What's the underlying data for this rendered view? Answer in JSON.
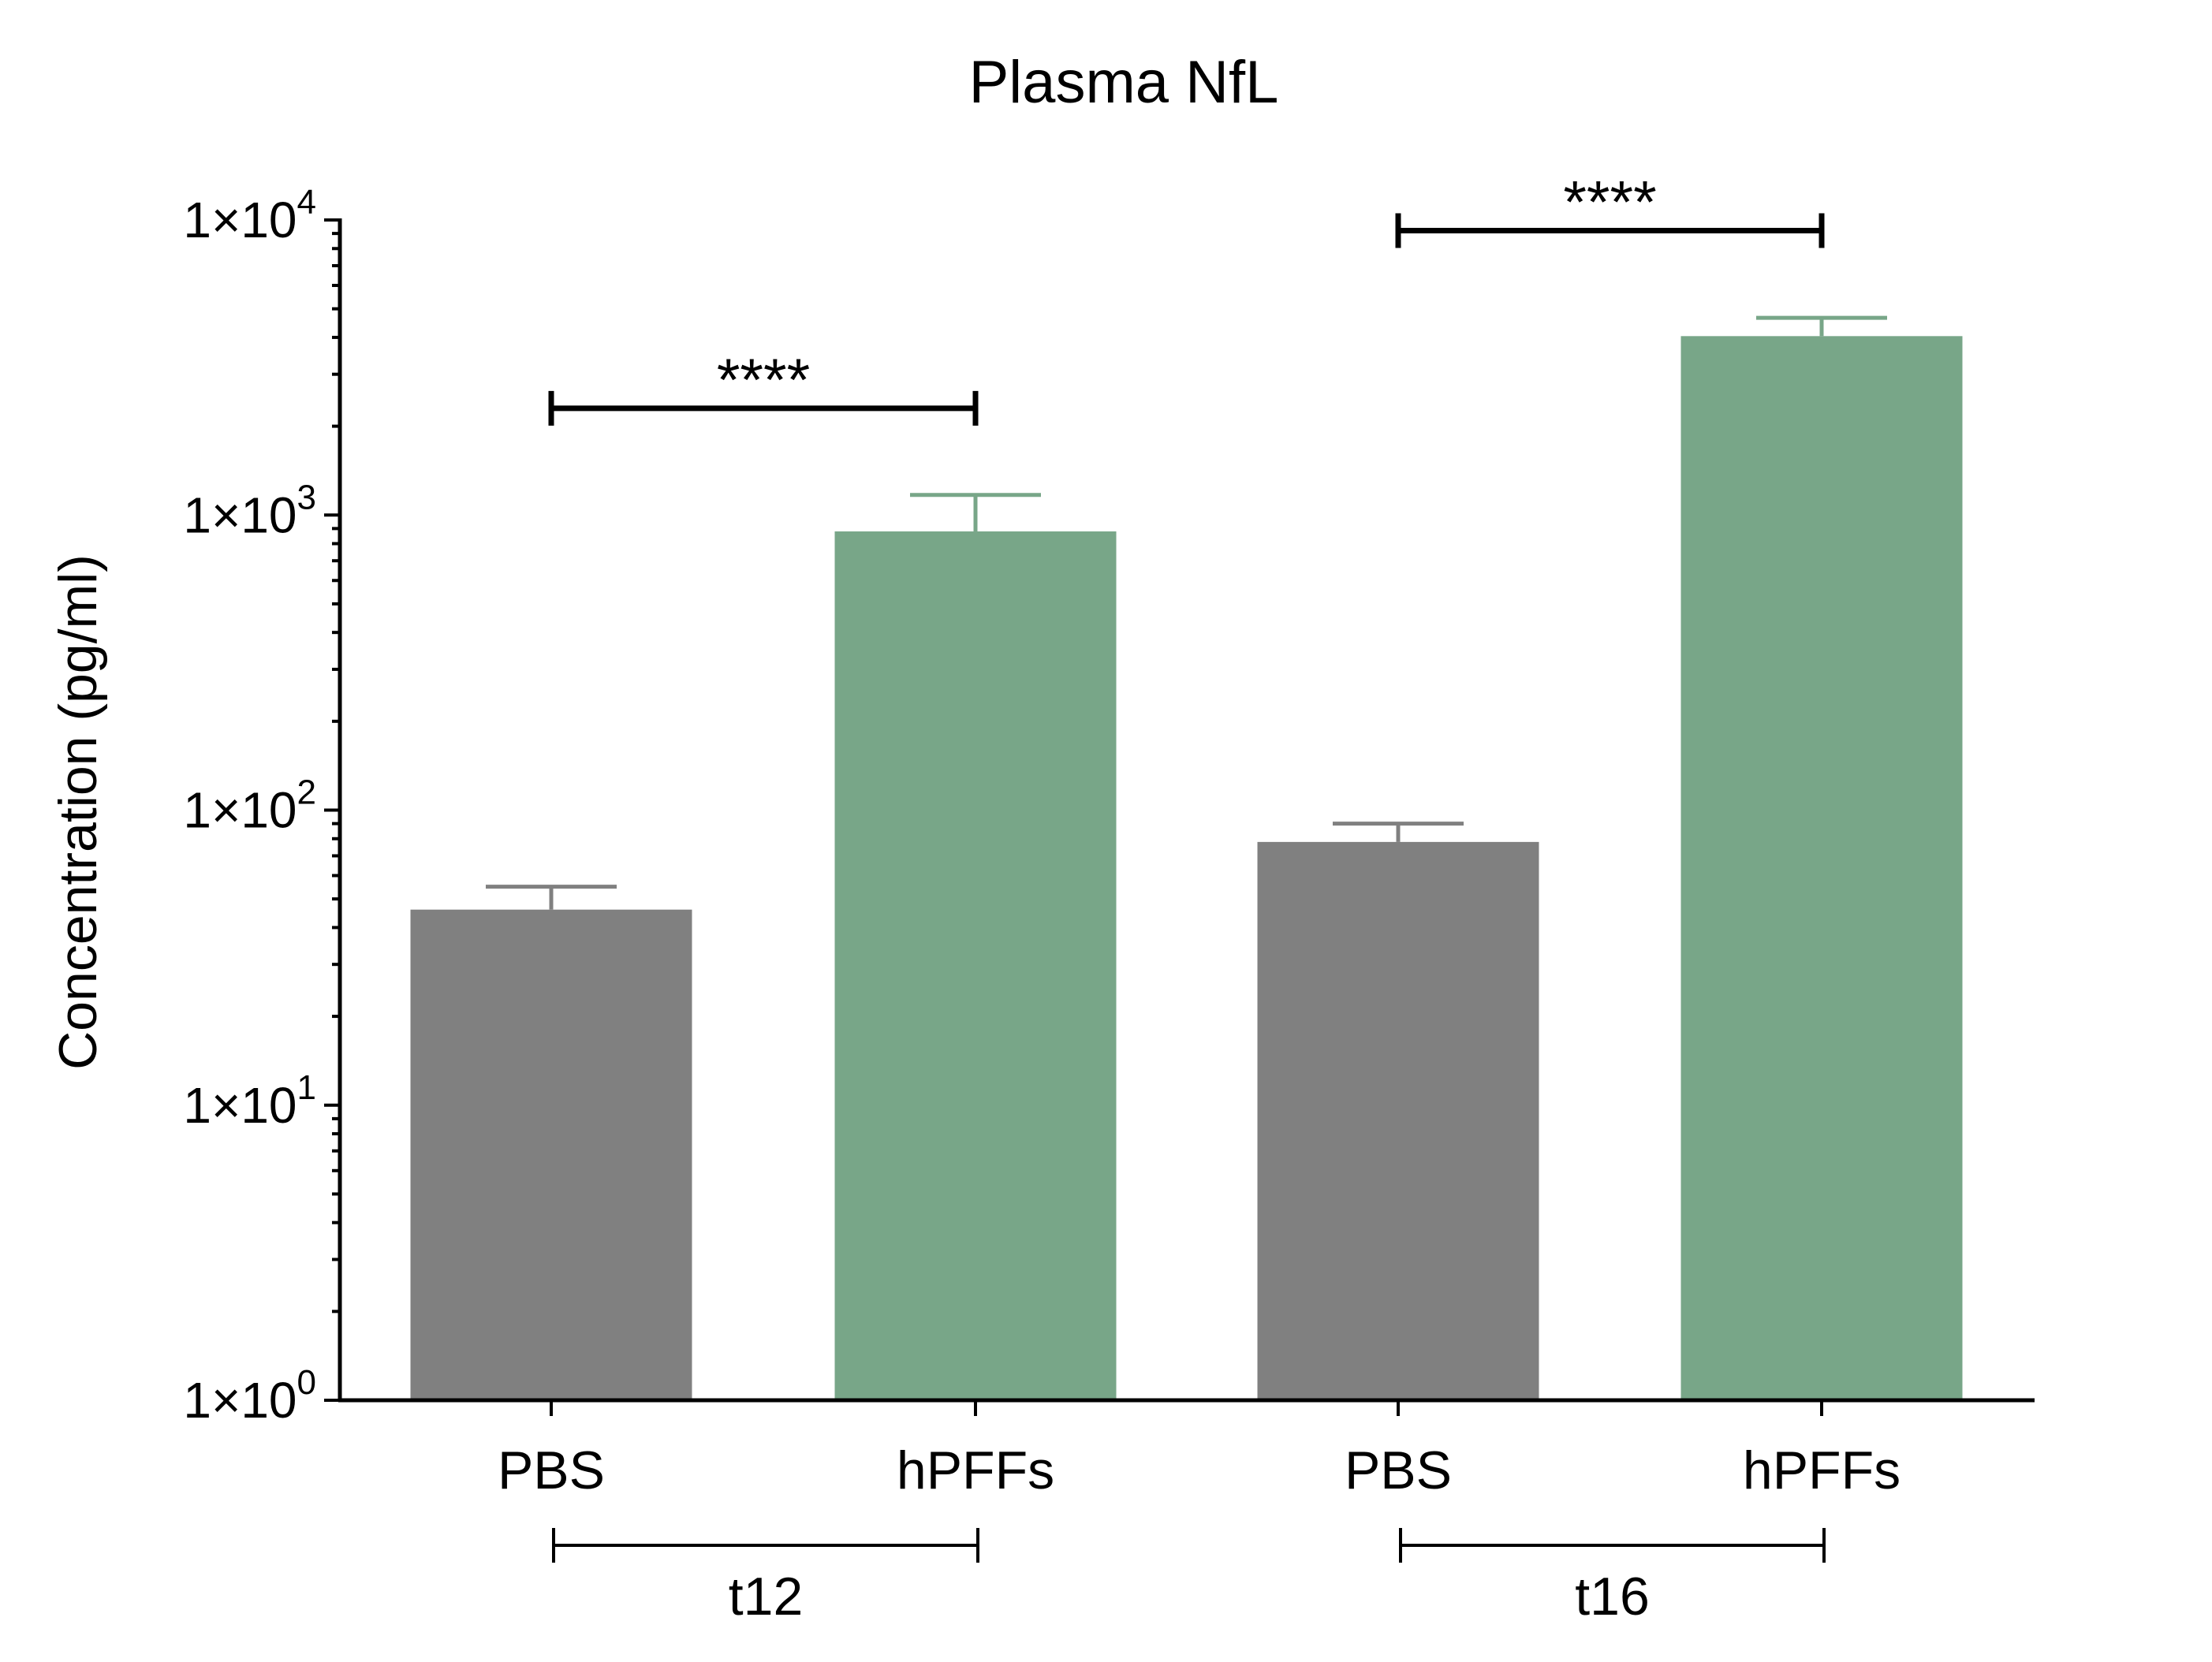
{
  "chart_data": {
    "type": "bar",
    "title": "Plasma NfL",
    "xlabel": "",
    "ylabel": "Concentration (pg/ml)",
    "yscale": "log",
    "ylim": [
      1,
      10000
    ],
    "y_ticks": [
      {
        "value": 1,
        "label": "1×10",
        "exp": "0"
      },
      {
        "value": 10,
        "label": "1×10",
        "exp": "1"
      },
      {
        "value": 100,
        "label": "1×10",
        "exp": "2"
      },
      {
        "value": 1000,
        "label": "1×10",
        "exp": "3"
      },
      {
        "value": 10000,
        "label": "1×10",
        "exp": "4"
      }
    ],
    "grid": false,
    "categories": [
      "PBS",
      "hPFFs",
      "PBS",
      "hPFFs"
    ],
    "values": [
      46,
      880,
      78,
      4040
    ],
    "error_upper": [
      55,
      1170,
      90,
      4660
    ],
    "bar_colors": [
      "#808080",
      "#78a688",
      "#808080",
      "#78a688"
    ],
    "groups": [
      {
        "label": "t12",
        "from": 0,
        "to": 1
      },
      {
        "label": "t16",
        "from": 2,
        "to": 3
      }
    ],
    "significance": [
      {
        "from": 0,
        "to": 1,
        "label": "****",
        "y": 2300
      },
      {
        "from": 2,
        "to": 3,
        "label": "****",
        "y": 9200
      }
    ]
  }
}
